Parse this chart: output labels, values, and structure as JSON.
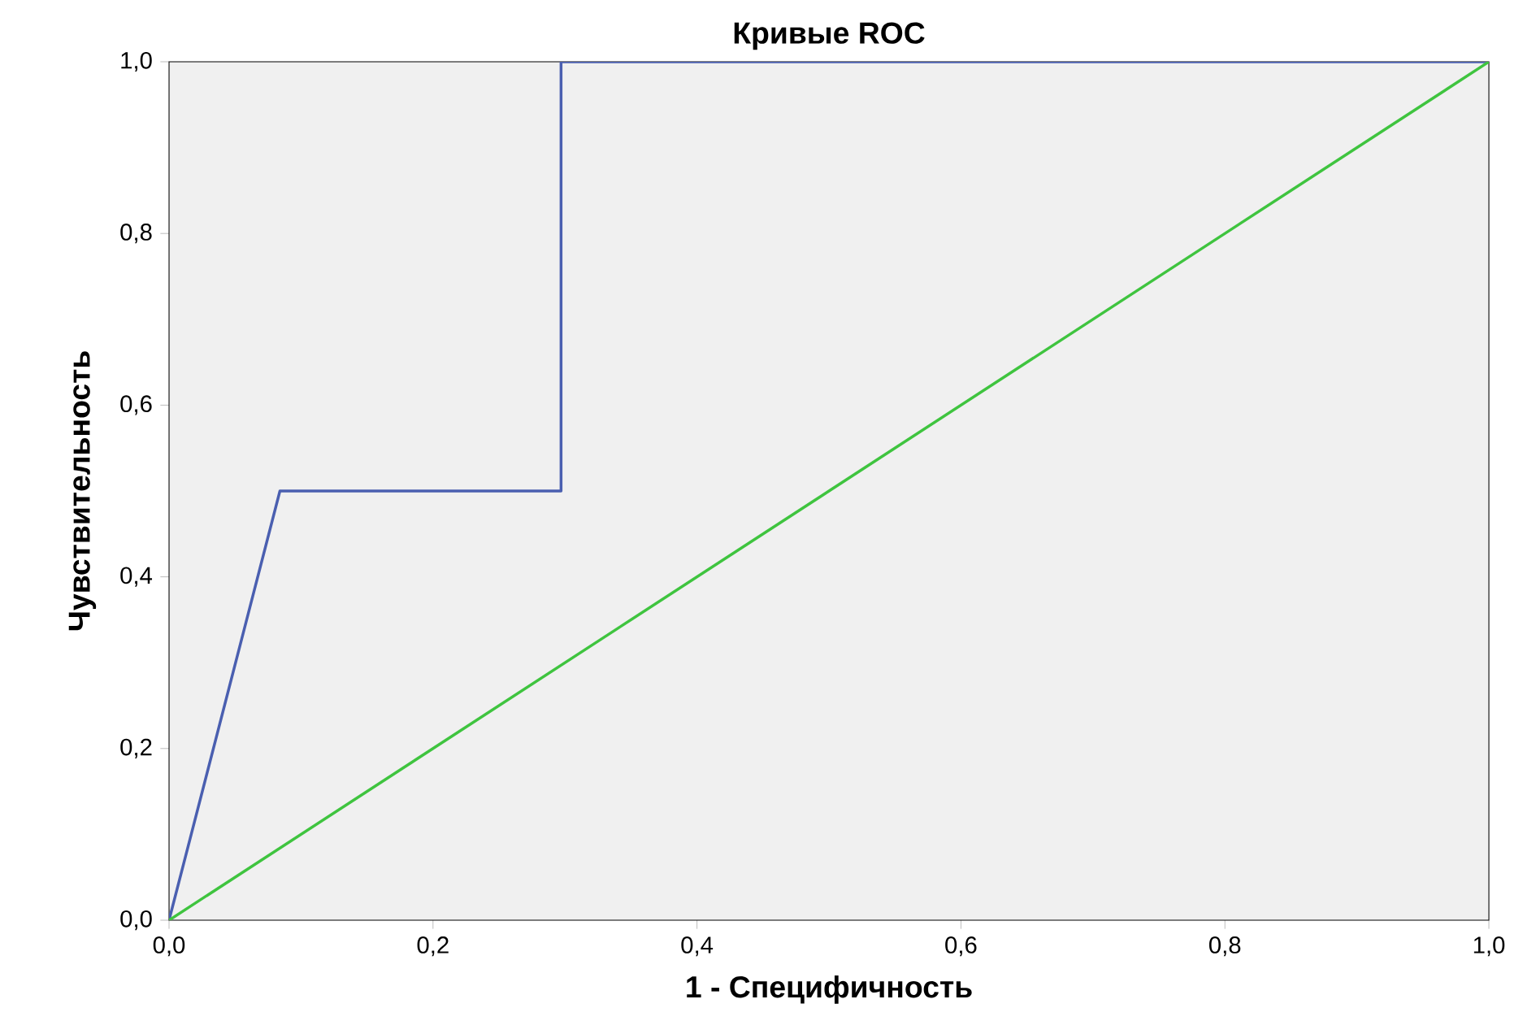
{
  "chart_data": {
    "type": "line",
    "title": "Кривые ROC",
    "xlabel": "1 - Специфичность",
    "ylabel": "Чувствительность",
    "xlim": [
      0,
      1
    ],
    "ylim": [
      0,
      1
    ],
    "xticks": [
      {
        "value": 0,
        "label": "0,0"
      },
      {
        "value": 0.2,
        "label": "0,2"
      },
      {
        "value": 0.4,
        "label": "0,4"
      },
      {
        "value": 0.6,
        "label": "0,6"
      },
      {
        "value": 0.8,
        "label": "0,8"
      },
      {
        "value": 1,
        "label": "1,0"
      }
    ],
    "yticks": [
      {
        "value": 0,
        "label": "0,0"
      },
      {
        "value": 0.2,
        "label": "0,2"
      },
      {
        "value": 0.4,
        "label": "0,4"
      },
      {
        "value": 0.6,
        "label": "0,6"
      },
      {
        "value": 0.8,
        "label": "0,8"
      },
      {
        "value": 1,
        "label": "1,0"
      }
    ],
    "series": [
      {
        "color": "#4a5fb0",
        "x": [
          0,
          0.084,
          0.297,
          0.297,
          1
        ],
        "values": [
          0,
          0.5,
          0.5,
          1,
          1
        ]
      },
      {
        "color": "#3fc43f",
        "x": [
          0,
          1
        ],
        "values": [
          0,
          1
        ]
      }
    ]
  }
}
